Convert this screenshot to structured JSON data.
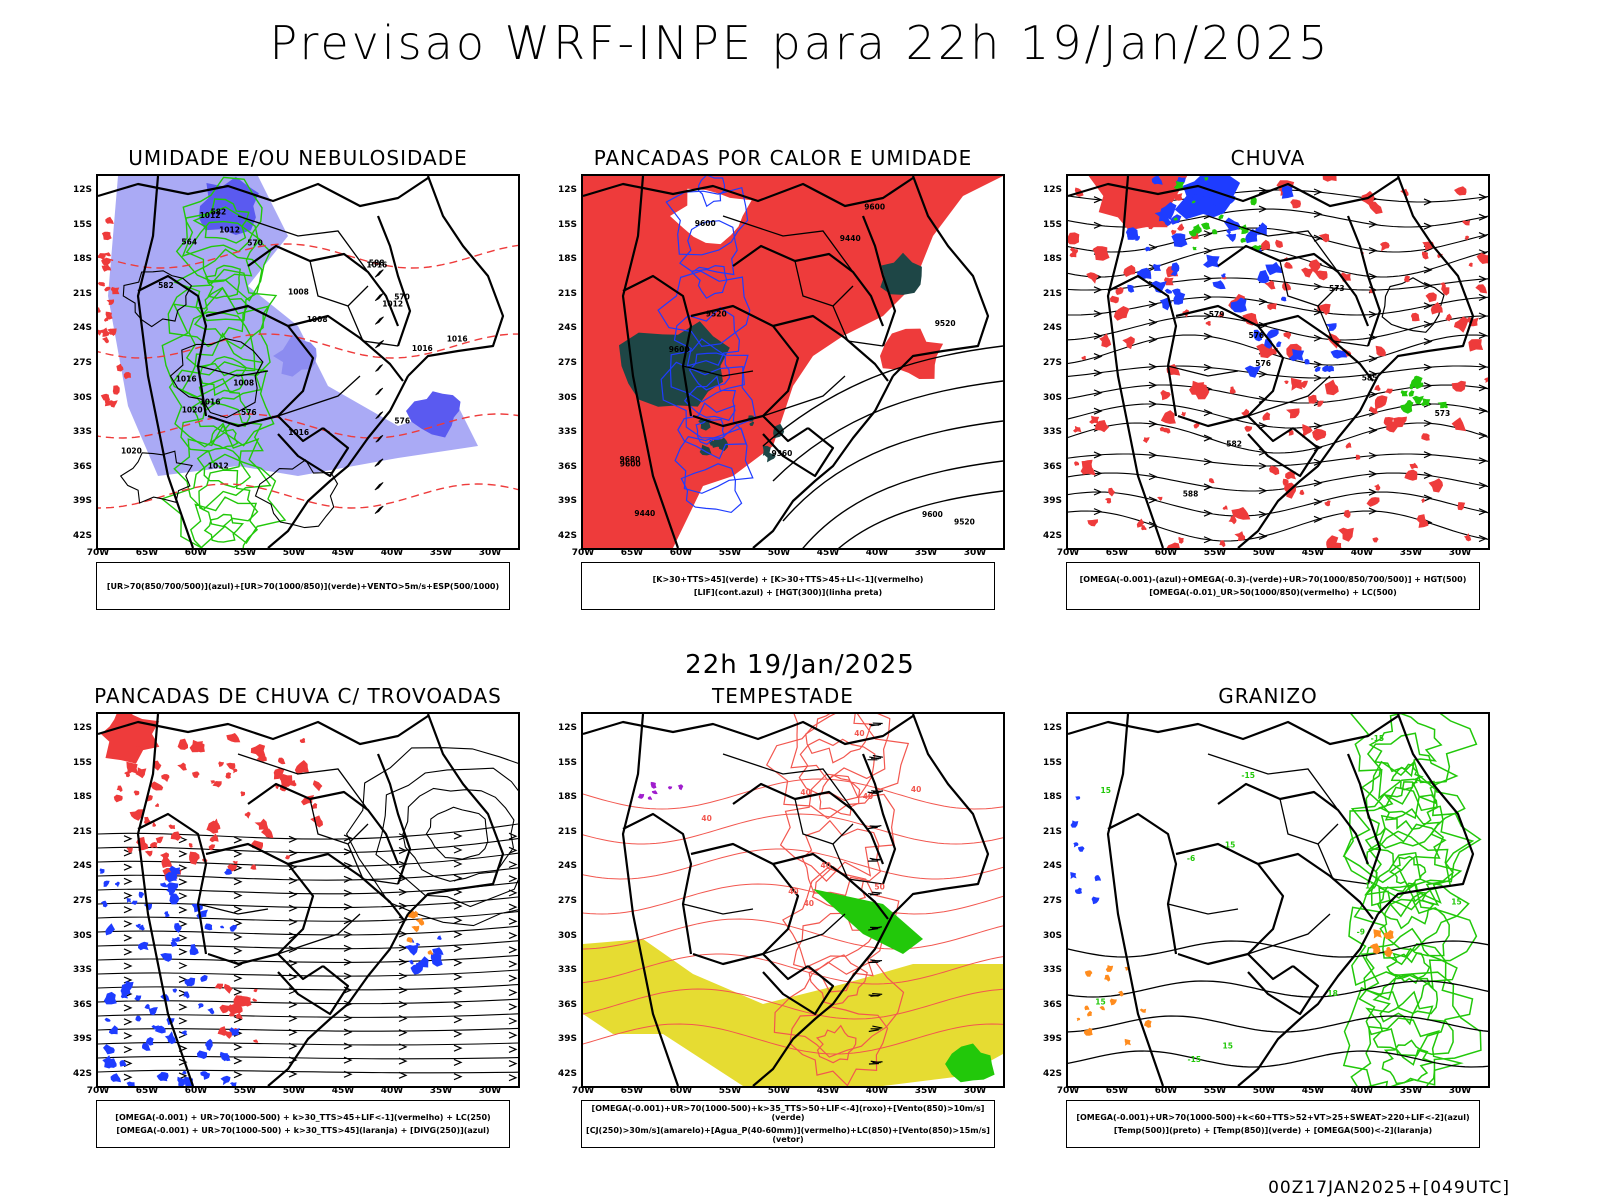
{
  "header": {
    "title": "Previsao WRF-INPE  para 22h 19/Jan/2025"
  },
  "mid_title": "22h 19/Jan/2025",
  "footer": {
    "stamp": "00Z17JAN2025+[049UTC]"
  },
  "axes": {
    "latitudes": [
      "12S",
      "15S",
      "18S",
      "21S",
      "24S",
      "27S",
      "30S",
      "33S",
      "36S",
      "39S",
      "42S"
    ],
    "longitudes": [
      "70W",
      "65W",
      "60W",
      "55W",
      "50W",
      "45W",
      "40W",
      "35W",
      "30W"
    ]
  },
  "colors": {
    "red": "#ee3b3b",
    "green": "#22c80a",
    "blue": "#1e3cff",
    "lavender": "#aaaaf5",
    "dark_teal": "#1e4646",
    "yellow": "#e6dc32",
    "salmon": "#f2574f",
    "orange": "#ff8c1e",
    "purple": "#a01ecd",
    "black": "#000000"
  },
  "panels": [
    {
      "id": "umidade",
      "title": "UMIDADE E/OU NEBULOSIDADE",
      "legend_lines": [
        "[UR>70(850/700/500)](azul)+[UR>70(1000/850)](verde)+VENTO>5m/s+ESP(500/1000)"
      ],
      "contour_labels": [
        "1012",
        "1008",
        "1012",
        "1016",
        "1016",
        "1008",
        "1012",
        "1016",
        "1008",
        "1016",
        "1012",
        "1016",
        "1020",
        "1020",
        "1016",
        "576",
        "576",
        "570",
        "564",
        "582",
        "588",
        "582",
        "570"
      ]
    },
    {
      "id": "pancadas-calor",
      "title": "PANCADAS POR CALOR E UMIDADE",
      "legend_lines": [
        "[K>30+TTS>45](verde)  +  [K>30+TTS>45+LI<-1](vermelho)",
        "[LIF](cont.azul)  +  [HGT(300)](linha preta)"
      ],
      "contour_labels": [
        "9600",
        "9600",
        "9680",
        "9600",
        "9520",
        "9600",
        "9520",
        "9440",
        "9360",
        "9440",
        "9520",
        "9600"
      ]
    },
    {
      "id": "chuva",
      "title": "CHUVA",
      "legend_lines": [
        "[OMEGA(-0.001)-(azul)+OMEGA(-0.3)-(verde)+UR>70(1000/850/700/500)]  +  HGT(500)",
        "[OMEGA(-0.01)_UR>50(1000/850)(vermelho)  +  LC(500)"
      ],
      "contour_labels": [
        "588",
        "585",
        "582",
        "579",
        "576",
        "573",
        "576",
        "573"
      ]
    },
    {
      "id": "trovoadas",
      "title": "PANCADAS DE CHUVA C/ TROVOADAS",
      "legend_lines": [
        "[OMEGA(-0.001)  +  UR>70(1000-500)  +  k>30_TTS>45+LIF<-1](vermelho)  +  LC(250)",
        "[OMEGA(-0.001)  +  UR>70(1000-500)  +  k>30_TTS>45](laranja)  +  [DIVG(250)](azul)"
      ],
      "contour_labels": []
    },
    {
      "id": "tempestade",
      "title": "TEMPESTADE",
      "legend_lines": [
        "[OMEGA(-0.001)+UR>70(1000-500)+k>35_TTS>50+LIF<-4](roxo)+[Vento(850)>10m/s](verde)",
        "[CJ(250)>30m/s](amarelo)+[Agua_P(40-60mm)](vermelho)+LC(850)+[Vento(850)>15m/s](vetor)"
      ],
      "contour_labels": [
        "40",
        "40",
        "40",
        "40",
        "40",
        "50",
        "40",
        "40",
        "40"
      ]
    },
    {
      "id": "granizo",
      "title": "GRANIZO",
      "legend_lines": [
        "[OMEGA(-0.001)+UR>70(1000-500)+k<60+TTS>52+VT>25+SWEAT>220+LIF<-2](azul)",
        "[Temp(500)](preto)  +  [Temp(850)](verde)  +  [OMEGA(500)<-2](laranja)"
      ],
      "contour_labels": [
        "-15",
        "15",
        "15",
        "15",
        "12",
        "15",
        "18",
        "-15",
        "-9",
        "-15",
        "-6",
        "15"
      ]
    }
  ]
}
